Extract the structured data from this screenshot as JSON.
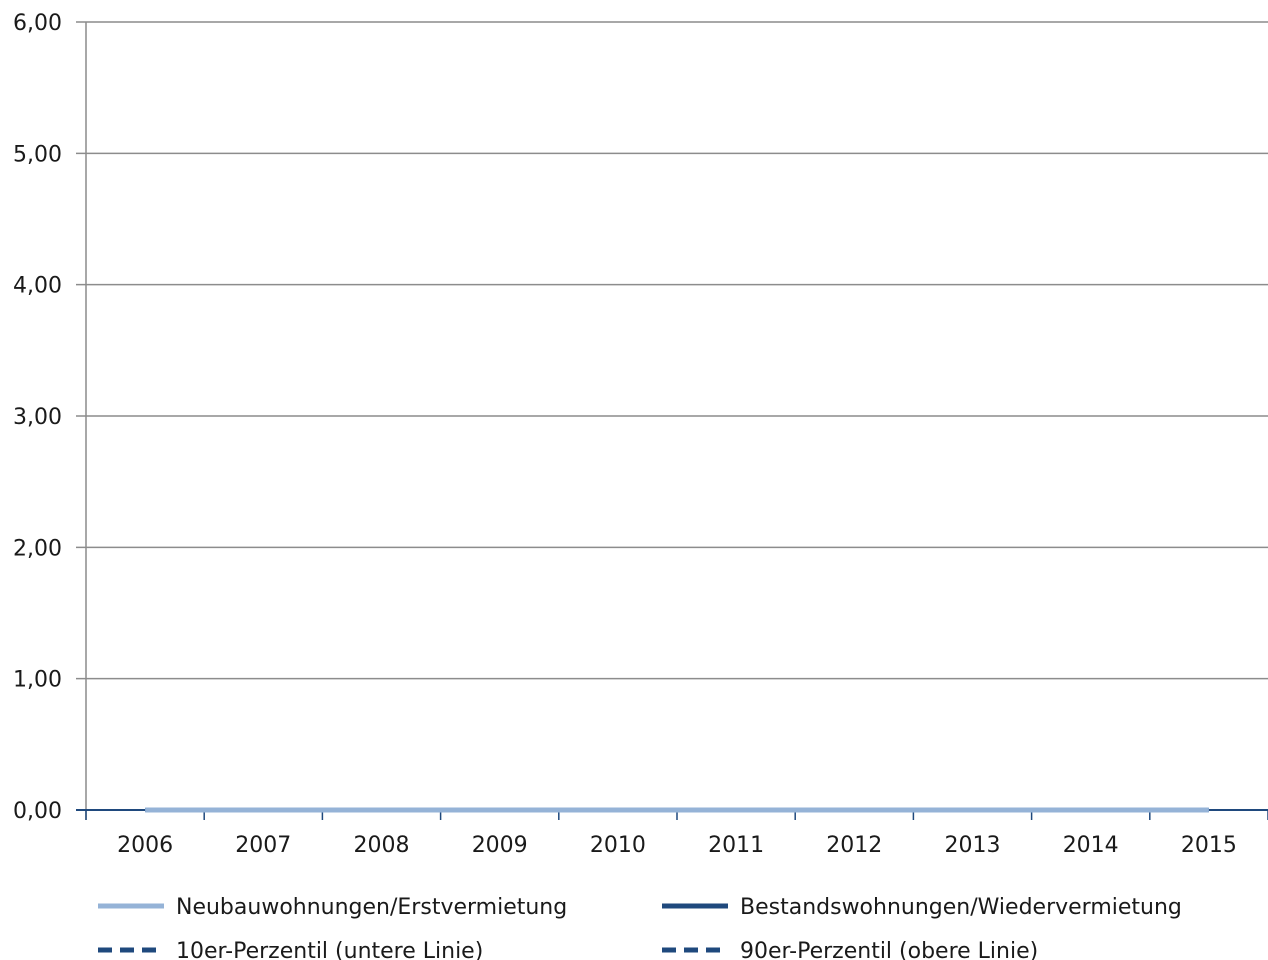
{
  "chart_data": {
    "type": "line",
    "title": "",
    "xlabel": "",
    "ylabel": "",
    "x": [
      "2006",
      "2007",
      "2008",
      "2009",
      "2010",
      "2011",
      "2012",
      "2013",
      "2014",
      "2015"
    ],
    "y_tick_labels": [
      "0,00",
      "1,00",
      "2,00",
      "3,00",
      "4,00",
      "5,00",
      "6,00"
    ],
    "ylim": [
      0,
      6
    ],
    "grid": true,
    "legend_position": "bottom",
    "series": [
      {
        "name": "Neubauwohnungen/Erstvermietung",
        "values": [
          0,
          0,
          0,
          0,
          0,
          0,
          0,
          0,
          0,
          0
        ],
        "color": "#95b3d7",
        "style": "solid"
      },
      {
        "name": "Bestandswohnungen/Wiedervermietung",
        "values": [
          0,
          0,
          0,
          0,
          0,
          0,
          0,
          0,
          0,
          0
        ],
        "color": "#1f497d",
        "style": "solid"
      },
      {
        "name": "10er-Perzentil (untere Linie)",
        "values": [
          0,
          0,
          0,
          0,
          0,
          0,
          0,
          0,
          0,
          0
        ],
        "color": "#1f497d",
        "style": "dashed"
      },
      {
        "name": "90er-Perzentil (obere Linie)",
        "values": [
          0,
          0,
          0,
          0,
          0,
          0,
          0,
          0,
          0,
          0
        ],
        "color": "#1f497d",
        "style": "dashed"
      }
    ]
  }
}
